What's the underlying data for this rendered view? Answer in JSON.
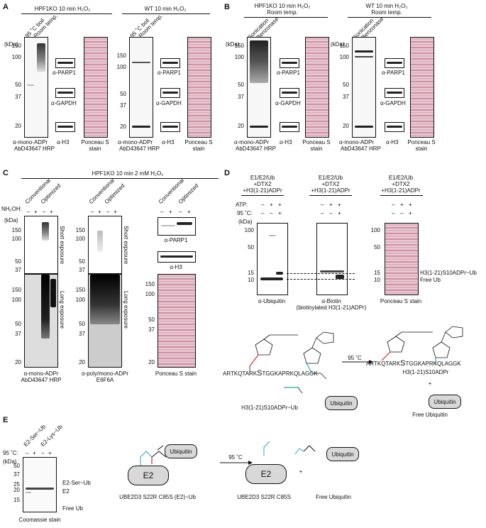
{
  "panelA": {
    "letter": "A",
    "header_left": "HPF1KO 10 min H₂O₂",
    "header_right": "WT 10 min H₂O₂",
    "lane_boil": "95 ˚C boil",
    "lane_room": "Room temp.",
    "kda": "(kDa)",
    "mw": [
      "150",
      "100",
      "50",
      "37",
      "20"
    ],
    "ab1": "α-mono-ADPr",
    "ab2": "AbD43647 HRP",
    "parp1": "α-PARP1",
    "gapdh": "α-GAPDH",
    "h3": "α-H3",
    "ponceau1": "Ponceau S",
    "ponceau2": "stain"
  },
  "panelB": {
    "letter": "B",
    "header_left_1": "HPF1KO 10 min H₂O₂",
    "header_left_2": "Room temp.",
    "header_right_1": "WT 10 min H₂O₂",
    "header_right_2": "Room temp.",
    "lane_son": "Sonication",
    "lane_benz": "Benzonase"
  },
  "panelC": {
    "letter": "C",
    "header": "HPF1KO 10 min 2 mM H₂O₂",
    "conv": "Conventional",
    "opt": "Optimized",
    "nh2oh": "NH₂OH:",
    "signs": [
      "–",
      "+",
      "–",
      "+"
    ],
    "short": "Short exposure",
    "long": "Long exposure",
    "ab_poly1": "α-poly/mono-ADPr",
    "ab_poly2": "E6F6A",
    "ponceau": "Ponceau S stain",
    "parp1": "α-PARP1",
    "h3": "α-H3"
  },
  "panelD": {
    "letter": "D",
    "cond1": "E1/E2/Ub",
    "cond2": "+DTX2",
    "cond3": "+H3(1-21)ADPr",
    "atp": "ATP:",
    "c95": "95 ˚C:",
    "atp_signs": [
      "–",
      "+",
      "+"
    ],
    "c95_signs": [
      "–",
      "–",
      "+"
    ],
    "mw": [
      "100",
      "50",
      "15",
      "10"
    ],
    "ab_ub": "α-Ubiquitin",
    "ab_biotin": "α-Biotin",
    "biotin_note": "(biotinylated H3(1-21)ADPr)",
    "ponceau": "Ponceau S stain",
    "label_conj": "H3(1-21)S10ADPr~Ub",
    "label_free": "Free Ub",
    "seq_left": "ARTKQTARK",
    "seq_S": "S",
    "seq_right": "TGGKAPRKQLAGGK",
    "reactant": "H3(1-21)S10ADPr~Ub",
    "arrow": "95 ˚C",
    "product": "H3(1-21)S10ADPr",
    "plus": "+",
    "free_ub": "Free Ubiquitin",
    "ubiquitin": "Ubiquitin"
  },
  "panelE": {
    "letter": "E",
    "lane1": "E2-Ser~Ub",
    "lane2": "E2-Lys~Ub",
    "c95": "95 ˚C:",
    "signs": [
      "–",
      "+",
      "–",
      "+"
    ],
    "mw": [
      "50",
      "37",
      "25",
      "20",
      "15"
    ],
    "label_ser": "E2-Ser~Ub",
    "label_e2": "E2",
    "label_free": "Free Ub",
    "stain": "Coomassie stain",
    "e2": "E2",
    "ubiquitin": "Ubiquitin",
    "arrow": "95 ˚C",
    "reactant": "UBE2D3 S22R C85S (E2)~Ub",
    "product": "UBE2D3 S22R C85S",
    "plus": "+",
    "free": "Free Ubiquitin"
  }
}
